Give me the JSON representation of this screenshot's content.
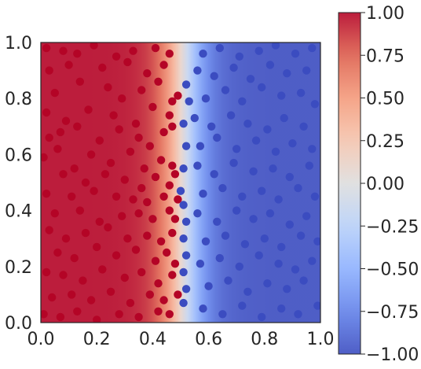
{
  "chart_data": {
    "type": "scatter",
    "title": "",
    "xlabel": "",
    "ylabel": "",
    "xlim": [
      0.0,
      1.0
    ],
    "ylim": [
      0.0,
      1.0
    ],
    "grid": false,
    "legend": "none",
    "x_ticks": [
      "0.0",
      "0.2",
      "0.4",
      "0.6",
      "0.8",
      "1.0"
    ],
    "y_ticks": [
      "0.0",
      "0.2",
      "0.4",
      "0.6",
      "0.8",
      "1.0"
    ],
    "background": {
      "kind": "decision-function",
      "colormap": "coolwarm",
      "boundary_x": 0.51,
      "value_left": 1.0,
      "value_right": -1.0
    },
    "colorbar": {
      "range": [
        -1.0,
        1.0
      ],
      "ticks": [
        "1.00",
        "0.75",
        "0.50",
        "0.25",
        "0.00",
        "−0.25",
        "−0.50",
        "−0.75",
        "−1.00"
      ],
      "tick_values": [
        1.0,
        0.75,
        0.5,
        0.25,
        0.0,
        -0.25,
        -0.5,
        -0.75,
        -1.0
      ]
    },
    "series": [
      {
        "class": "positive",
        "color": "#b40426",
        "points": [
          [
            0.02,
            0.98
          ],
          [
            0.08,
            0.97
          ],
          [
            0.13,
            0.96
          ],
          [
            0.19,
            0.99
          ],
          [
            0.27,
            0.95
          ],
          [
            0.33,
            0.97
          ],
          [
            0.41,
            0.98
          ],
          [
            0.46,
            0.96
          ],
          [
            0.03,
            0.9
          ],
          [
            0.1,
            0.92
          ],
          [
            0.22,
            0.91
          ],
          [
            0.31,
            0.93
          ],
          [
            0.38,
            0.89
          ],
          [
            0.44,
            0.92
          ],
          [
            0.05,
            0.82
          ],
          [
            0.14,
            0.86
          ],
          [
            0.24,
            0.84
          ],
          [
            0.29,
            0.8
          ],
          [
            0.36,
            0.83
          ],
          [
            0.42,
            0.86
          ],
          [
            0.47,
            0.79
          ],
          [
            0.49,
            0.81
          ],
          [
            0.02,
            0.75
          ],
          [
            0.09,
            0.72
          ],
          [
            0.17,
            0.76
          ],
          [
            0.26,
            0.74
          ],
          [
            0.34,
            0.71
          ],
          [
            0.4,
            0.77
          ],
          [
            0.46,
            0.74
          ],
          [
            0.03,
            0.66
          ],
          [
            0.07,
            0.68
          ],
          [
            0.13,
            0.7
          ],
          [
            0.21,
            0.65
          ],
          [
            0.28,
            0.69
          ],
          [
            0.35,
            0.66
          ],
          [
            0.39,
            0.63
          ],
          [
            0.44,
            0.68
          ],
          [
            0.47,
            0.7
          ],
          [
            0.01,
            0.59
          ],
          [
            0.06,
            0.62
          ],
          [
            0.12,
            0.55
          ],
          [
            0.18,
            0.6
          ],
          [
            0.25,
            0.57
          ],
          [
            0.32,
            0.61
          ],
          [
            0.37,
            0.55
          ],
          [
            0.43,
            0.58
          ],
          [
            0.47,
            0.56
          ],
          [
            0.08,
            0.53
          ],
          [
            0.16,
            0.5
          ],
          [
            0.23,
            0.53
          ],
          [
            0.3,
            0.51
          ],
          [
            0.36,
            0.48
          ],
          [
            0.41,
            0.52
          ],
          [
            0.46,
            0.49
          ],
          [
            0.48,
            0.53
          ],
          [
            0.02,
            0.46
          ],
          [
            0.11,
            0.45
          ],
          [
            0.19,
            0.47
          ],
          [
            0.27,
            0.45
          ],
          [
            0.33,
            0.44
          ],
          [
            0.38,
            0.43
          ],
          [
            0.44,
            0.45
          ],
          [
            0.49,
            0.44
          ],
          [
            0.05,
            0.39
          ],
          [
            0.14,
            0.4
          ],
          [
            0.21,
            0.36
          ],
          [
            0.29,
            0.38
          ],
          [
            0.35,
            0.39
          ],
          [
            0.4,
            0.37
          ],
          [
            0.46,
            0.4
          ],
          [
            0.48,
            0.37
          ],
          [
            0.03,
            0.33
          ],
          [
            0.09,
            0.3
          ],
          [
            0.16,
            0.32
          ],
          [
            0.24,
            0.34
          ],
          [
            0.31,
            0.3
          ],
          [
            0.38,
            0.31
          ],
          [
            0.43,
            0.29
          ],
          [
            0.47,
            0.32
          ],
          [
            0.06,
            0.25
          ],
          [
            0.12,
            0.23
          ],
          [
            0.2,
            0.27
          ],
          [
            0.27,
            0.24
          ],
          [
            0.34,
            0.26
          ],
          [
            0.41,
            0.22
          ],
          [
            0.45,
            0.25
          ],
          [
            0.48,
            0.21
          ],
          [
            0.02,
            0.18
          ],
          [
            0.08,
            0.17
          ],
          [
            0.15,
            0.15
          ],
          [
            0.22,
            0.19
          ],
          [
            0.3,
            0.16
          ],
          [
            0.36,
            0.18
          ],
          [
            0.42,
            0.14
          ],
          [
            0.47,
            0.17
          ],
          [
            0.04,
            0.09
          ],
          [
            0.11,
            0.1
          ],
          [
            0.18,
            0.08
          ],
          [
            0.25,
            0.11
          ],
          [
            0.32,
            0.07
          ],
          [
            0.39,
            0.1
          ],
          [
            0.44,
            0.08
          ],
          [
            0.49,
            0.1
          ],
          [
            0.01,
            0.03
          ],
          [
            0.07,
            0.02
          ],
          [
            0.13,
            0.04
          ],
          [
            0.2,
            0.01
          ],
          [
            0.28,
            0.03
          ],
          [
            0.35,
            0.02
          ],
          [
            0.42,
            0.04
          ],
          [
            0.46,
            0.03
          ]
        ]
      },
      {
        "class": "negative",
        "color": "#3b4cc0",
        "points": [
          [
            0.52,
            0.85
          ],
          [
            0.53,
            0.79
          ],
          [
            0.51,
            0.71
          ],
          [
            0.52,
            0.63
          ],
          [
            0.51,
            0.55
          ],
          [
            0.5,
            0.47
          ],
          [
            0.51,
            0.42
          ],
          [
            0.52,
            0.36
          ],
          [
            0.51,
            0.3
          ],
          [
            0.52,
            0.24
          ],
          [
            0.51,
            0.18
          ],
          [
            0.52,
            0.12
          ],
          [
            0.51,
            0.07
          ],
          [
            0.58,
            0.96
          ],
          [
            0.64,
            0.98
          ],
          [
            0.71,
            0.95
          ],
          [
            0.78,
            0.97
          ],
          [
            0.84,
            0.99
          ],
          [
            0.91,
            0.96
          ],
          [
            0.97,
            0.98
          ],
          [
            0.56,
            0.9
          ],
          [
            0.62,
            0.88
          ],
          [
            0.69,
            0.91
          ],
          [
            0.75,
            0.87
          ],
          [
            0.82,
            0.92
          ],
          [
            0.88,
            0.89
          ],
          [
            0.95,
            0.9
          ],
          [
            0.59,
            0.8
          ],
          [
            0.66,
            0.83
          ],
          [
            0.72,
            0.79
          ],
          [
            0.79,
            0.84
          ],
          [
            0.86,
            0.81
          ],
          [
            0.93,
            0.82
          ],
          [
            0.98,
            0.78
          ],
          [
            0.55,
            0.73
          ],
          [
            0.61,
            0.7
          ],
          [
            0.68,
            0.74
          ],
          [
            0.74,
            0.71
          ],
          [
            0.81,
            0.69
          ],
          [
            0.87,
            0.73
          ],
          [
            0.94,
            0.7
          ],
          [
            0.57,
            0.63
          ],
          [
            0.63,
            0.66
          ],
          [
            0.7,
            0.62
          ],
          [
            0.77,
            0.65
          ],
          [
            0.84,
            0.61
          ],
          [
            0.9,
            0.64
          ],
          [
            0.97,
            0.62
          ],
          [
            0.56,
            0.56
          ],
          [
            0.62,
            0.53
          ],
          [
            0.69,
            0.57
          ],
          [
            0.76,
            0.54
          ],
          [
            0.83,
            0.55
          ],
          [
            0.89,
            0.52
          ],
          [
            0.96,
            0.56
          ],
          [
            0.58,
            0.46
          ],
          [
            0.65,
            0.48
          ],
          [
            0.72,
            0.45
          ],
          [
            0.79,
            0.47
          ],
          [
            0.85,
            0.44
          ],
          [
            0.92,
            0.48
          ],
          [
            0.98,
            0.45
          ],
          [
            0.56,
            0.39
          ],
          [
            0.63,
            0.36
          ],
          [
            0.7,
            0.4
          ],
          [
            0.76,
            0.37
          ],
          [
            0.82,
            0.39
          ],
          [
            0.89,
            0.35
          ],
          [
            0.95,
            0.38
          ],
          [
            0.59,
            0.29
          ],
          [
            0.66,
            0.31
          ],
          [
            0.73,
            0.28
          ],
          [
            0.8,
            0.3
          ],
          [
            0.86,
            0.27
          ],
          [
            0.93,
            0.31
          ],
          [
            0.99,
            0.29
          ],
          [
            0.57,
            0.21
          ],
          [
            0.64,
            0.23
          ],
          [
            0.71,
            0.2
          ],
          [
            0.78,
            0.24
          ],
          [
            0.85,
            0.21
          ],
          [
            0.91,
            0.19
          ],
          [
            0.97,
            0.22
          ],
          [
            0.6,
            0.13
          ],
          [
            0.67,
            0.15
          ],
          [
            0.74,
            0.11
          ],
          [
            0.81,
            0.14
          ],
          [
            0.88,
            0.12
          ],
          [
            0.94,
            0.15
          ],
          [
            0.58,
            0.05
          ],
          [
            0.65,
            0.03
          ],
          [
            0.72,
            0.06
          ],
          [
            0.79,
            0.02
          ],
          [
            0.86,
            0.05
          ],
          [
            0.92,
            0.03
          ],
          [
            0.99,
            0.06
          ]
        ]
      }
    ]
  }
}
